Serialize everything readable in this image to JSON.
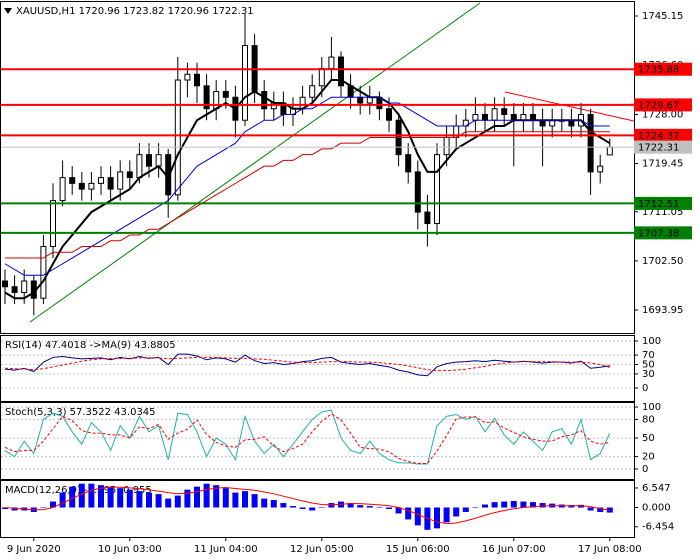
{
  "chart_data": [
    {
      "type": "candlestick",
      "title": "XAUUSD,H1  1720.96 1723.82 1720.96 1722.31",
      "categories": [
        null,
        null,
        null,
        "9 Jun 2020",
        null,
        null,
        null,
        null,
        null,
        null,
        null,
        null,
        null,
        "10 Jun 03:00",
        null,
        null,
        null,
        null,
        null,
        null,
        null,
        null,
        null,
        "11 Jun 04:00",
        null,
        null,
        null,
        null,
        null,
        null,
        null,
        null,
        null,
        "12 Jun 05:00",
        null,
        null,
        null,
        null,
        null,
        null,
        null,
        null,
        null,
        "15 Jun 06:00",
        null,
        null,
        null,
        null,
        null,
        null,
        null,
        null,
        null,
        "16 Jun 07:00",
        null,
        null,
        null,
        null,
        null,
        null,
        null,
        null,
        null,
        "17 Jun 08:00"
      ],
      "open": [
        1699,
        1698,
        1697,
        1699,
        1696,
        1705,
        1713,
        1717,
        1716,
        1715,
        1716,
        1717,
        1715,
        1718,
        1717,
        1721,
        1719,
        1721,
        1714,
        1734,
        1735,
        1733,
        1729,
        1732,
        1731,
        1727,
        1740,
        1732,
        1729,
        1730,
        1728,
        1729,
        1731,
        1733,
        1736,
        1738,
        1733,
        1731,
        1730,
        1731,
        1729,
        1727,
        1721,
        1718,
        1711,
        1709,
        1721,
        1724,
        1726,
        1727,
        1728,
        1727,
        1729,
        1728,
        1727,
        1728,
        1727,
        1726,
        1727,
        1727,
        1726,
        1728,
        1718,
        1720.96
      ],
      "high": [
        1701,
        1700,
        1701,
        1700,
        1707,
        1716,
        1720,
        1719,
        1718,
        1718,
        1719,
        1719,
        1720,
        1720,
        1723,
        1723,
        1723,
        1722,
        1738,
        1737,
        1737,
        1735,
        1734,
        1734,
        1733,
        1745.5,
        1742,
        1734,
        1732,
        1732,
        1731,
        1733,
        1735,
        1738,
        1741.5,
        1739,
        1735,
        1733,
        1733,
        1732,
        1731,
        1728,
        1723,
        1720,
        1714,
        1723,
        1726,
        1728,
        1729,
        1731,
        1730,
        1731,
        1731,
        1730,
        1730,
        1730,
        1729,
        1729,
        1729,
        1729,
        1730,
        1729,
        1721,
        1723.82
      ],
      "low": [
        1695,
        1695,
        1695,
        1693,
        1695,
        1703,
        1712,
        1714,
        1713,
        1713,
        1714,
        1713,
        1713,
        1715,
        1716,
        1717,
        1717,
        1710,
        1713,
        1731,
        1730,
        1727,
        1727,
        1729,
        1724,
        1726,
        1730,
        1727,
        1727,
        1726,
        1726,
        1728,
        1730,
        1731,
        1734,
        1731,
        1729,
        1728,
        1728,
        1727,
        1725,
        1719,
        1716,
        1708,
        1705,
        1707,
        1719,
        1722,
        1724,
        1725,
        1725,
        1725,
        1726,
        1719,
        1725,
        1725,
        1719,
        1724,
        1725,
        1724,
        1724,
        1714,
        1716,
        1720.96
      ],
      "close": [
        1698,
        1697,
        1699,
        1696,
        1705,
        1713,
        1717,
        1716,
        1715,
        1716,
        1717,
        1715,
        1718,
        1717,
        1721,
        1719,
        1721,
        1714,
        1734,
        1735,
        1733,
        1729,
        1732,
        1731,
        1727,
        1740,
        1732,
        1729,
        1730,
        1728,
        1729,
        1731,
        1733,
        1736,
        1738,
        1733,
        1731,
        1730,
        1731,
        1729,
        1727,
        1721,
        1718,
        1711,
        1709,
        1721,
        1724,
        1726,
        1727,
        1728,
        1727,
        1729,
        1728,
        1727,
        1728,
        1727,
        1726,
        1727,
        1727,
        1726,
        1728,
        1718,
        1719,
        1722.31
      ],
      "series": [
        {
          "color": "#000000",
          "values": [
            1697,
            1696,
            1696,
            1697,
            1699,
            1702,
            1705,
            1707,
            1709,
            1711,
            1712,
            1713,
            1714,
            1715,
            1717,
            1718,
            1719,
            1717,
            1721,
            1724,
            1727,
            1728,
            1729,
            1730,
            1729,
            1731,
            1732,
            1731,
            1730,
            1730,
            1729,
            1729,
            1730,
            1732,
            1734,
            1734,
            1733,
            1732,
            1731,
            1731,
            1730,
            1728,
            1725,
            1721,
            1718,
            1718,
            1720,
            1722,
            1723,
            1724,
            1725,
            1726,
            1726,
            1727,
            1727,
            1727,
            1727,
            1727,
            1727,
            1727,
            1727,
            1725,
            1724,
            1723
          ]
        },
        {
          "color": "#0000cd",
          "values": [
            1702,
            1701,
            1700,
            1700,
            1700,
            1701,
            1702,
            1703,
            1704,
            1705,
            1706,
            1707,
            1708,
            1709,
            1710,
            1711,
            1712,
            1713,
            1715,
            1717,
            1719,
            1720,
            1721,
            1722,
            1723,
            1725,
            1726,
            1727,
            1727,
            1728,
            1728,
            1729,
            1729,
            1730,
            1731,
            1731,
            1731,
            1731,
            1731,
            1731,
            1730,
            1730,
            1729,
            1728,
            1727,
            1726,
            1726,
            1726,
            1726,
            1727,
            1727,
            1727,
            1727,
            1727,
            1727,
            1727,
            1727,
            1727,
            1727,
            1727,
            1727,
            1726,
            1726,
            1726
          ]
        },
        {
          "color": "#cc0000",
          "values": [
            1703,
            1703,
            1703,
            1703,
            1703,
            1704,
            1704,
            1704,
            1705,
            1705,
            1705,
            1706,
            1706,
            1707,
            1707,
            1708,
            1708,
            1709,
            1710,
            1711,
            1712,
            1713,
            1714,
            1715,
            1716,
            1717,
            1718,
            1719,
            1719,
            1720,
            1720,
            1721,
            1721,
            1722,
            1722,
            1723,
            1723,
            1723,
            1724,
            1724,
            1724,
            1724,
            1724,
            1724,
            1724,
            1724,
            1724,
            1724,
            1725,
            1725,
            1725,
            1725,
            1725,
            1725,
            1725,
            1725,
            1725,
            1725,
            1725,
            1725,
            1725,
            1725,
            1725,
            1725
          ]
        }
      ],
      "levels": [
        {
          "value": 1735.88,
          "color": "#ff0000"
        },
        {
          "value": 1729.67,
          "color": "#ff0000"
        },
        {
          "value": 1724.37,
          "color": "#ff0000"
        },
        {
          "value": 1722.31,
          "color": "#c0c0c0"
        },
        {
          "value": 1712.51,
          "color": "#008000"
        },
        {
          "value": 1707.38,
          "color": "#008000"
        }
      ],
      "ylim": [
        1689.94,
        1747.59
      ],
      "yticks": [
        1745.15,
        {
          "value": 1736.6,
          "label": "1736.60"
        },
        {
          "value": 1728,
          "label": "1728.00"
        },
        1719.45,
        1711.05,
        {
          "value": 1702.5,
          "label": "1702.50"
        },
        1693.95
      ]
    },
    {
      "type": "line",
      "title": "RSI(14) 47.4018 ->MA(9) 43.8805",
      "series": [
        {
          "color": "#00008b",
          "values": [
            40,
            38,
            42,
            35,
            55,
            65,
            67,
            64,
            62,
            63,
            64,
            60,
            65,
            62,
            67,
            63,
            65,
            50,
            72,
            72,
            68,
            60,
            64,
            62,
            55,
            70,
            58,
            52,
            54,
            50,
            52,
            56,
            58,
            63,
            65,
            55,
            52,
            50,
            52,
            48,
            45,
            38,
            34,
            28,
            26,
            45,
            52,
            55,
            56,
            58,
            56,
            59,
            57,
            55,
            57,
            55,
            53,
            55,
            55,
            53,
            57,
            42,
            44,
            47.4018
          ]
        },
        {
          "color": "#ff0000",
          "values": [
            42,
            41,
            40,
            39,
            41,
            45,
            49,
            53,
            57,
            60,
            62,
            63,
            63,
            63,
            64,
            64,
            64,
            62,
            63,
            64,
            65,
            65,
            65,
            64,
            63,
            63,
            62,
            61,
            59,
            57,
            55,
            54,
            54,
            55,
            56,
            56,
            56,
            55,
            55,
            54,
            52,
            50,
            47,
            43,
            39,
            37,
            37,
            38,
            40,
            43,
            46,
            50,
            53,
            55,
            56,
            56,
            56,
            56,
            55,
            55,
            55,
            53,
            50,
            43.8805
          ]
        }
      ],
      "ylim": [
        -27.7,
        110.6
      ],
      "yticks": [
        100,
        70,
        50,
        30,
        0
      ],
      "grid": true
    },
    {
      "type": "line",
      "title": "Stoch(5,3,3) 57.3522 43.0345",
      "series": [
        {
          "color": "#20b2aa",
          "values": [
            30,
            20,
            45,
            25,
            80,
            90,
            85,
            60,
            40,
            75,
            60,
            30,
            70,
            50,
            85,
            60,
            70,
            15,
            90,
            88,
            60,
            20,
            50,
            40,
            15,
            85,
            45,
            25,
            40,
            20,
            40,
            60,
            80,
            92,
            95,
            50,
            30,
            25,
            45,
            25,
            15,
            10,
            10,
            8,
            8,
            70,
            85,
            88,
            80,
            85,
            60,
            82,
            55,
            40,
            60,
            45,
            30,
            60,
            65,
            40,
            80,
            15,
            25,
            57.3522
          ]
        },
        {
          "color": "#ff0000",
          "values": [
            35,
            28,
            30,
            30,
            45,
            65,
            85,
            78,
            62,
            58,
            58,
            55,
            55,
            50,
            68,
            65,
            72,
            48,
            58,
            64,
            79,
            56,
            43,
            37,
            35,
            47,
            48,
            52,
            37,
            28,
            33,
            40,
            60,
            77,
            89,
            79,
            58,
            35,
            33,
            32,
            28,
            17,
            12,
            9,
            9,
            29,
            54,
            81,
            84,
            84,
            75,
            76,
            66,
            59,
            52,
            48,
            45,
            45,
            52,
            55,
            62,
            45,
            40,
            43.0345
          ]
        }
      ],
      "ylim": [
        -16.1,
        106.5
      ],
      "yticks": [
        100,
        80,
        50,
        20,
        0
      ],
      "grid": true
    },
    {
      "type": "macd",
      "title": "MACD(12,26,9) -1.695 -0.955",
      "color": "#0000ff",
      "values": [
        -0.5,
        -1,
        -1,
        -1.5,
        0,
        2,
        5,
        7,
        8,
        8,
        7.5,
        7,
        6.5,
        6,
        5.5,
        5,
        4.5,
        3,
        4,
        6,
        7,
        8,
        7.5,
        6.5,
        5,
        5.5,
        4.5,
        3,
        2.5,
        1.5,
        0.5,
        -0.5,
        -1,
        0,
        1.5,
        2,
        1.5,
        0.8,
        0.5,
        0.2,
        -0.5,
        -2,
        -4,
        -6,
        -7.5,
        -7,
        -5,
        -3,
        -1.5,
        0,
        1,
        1.8,
        2,
        2.2,
        2,
        1.8,
        1.5,
        1.3,
        1,
        0.8,
        0.9,
        -1,
        -1.5,
        -1.695
      ],
      "series": [
        {
          "color": "#ff0000",
          "values": [
            0,
            -0.3,
            -0.5,
            -0.8,
            -0.7,
            0,
            1.5,
            3,
            4.5,
            5.8,
            6.5,
            6.8,
            6.8,
            6.6,
            6.3,
            5.9,
            5.5,
            5,
            4.6,
            4.8,
            5.3,
            6,
            6.5,
            6.7,
            6.4,
            6.1,
            5.8,
            5.2,
            4.6,
            3.8,
            3,
            2.2,
            1.5,
            1,
            0.9,
            1.1,
            1.3,
            1.3,
            1.1,
            0.9,
            0.6,
            0,
            -1,
            -2.3,
            -3.7,
            -4.8,
            -5.4,
            -5.2,
            -4.5,
            -3.6,
            -2.6,
            -1.7,
            -1,
            -0.4,
            0,
            0.3,
            0.5,
            0.6,
            0.6,
            0.6,
            0.6,
            0.3,
            -0.4,
            -0.955
          ]
        }
      ],
      "ylim": [
        -9.9,
        8.9
      ],
      "yticks": [
        6.547,
        {
          "value": 0,
          "label": "0.000"
        },
        -6.454
      ]
    }
  ]
}
